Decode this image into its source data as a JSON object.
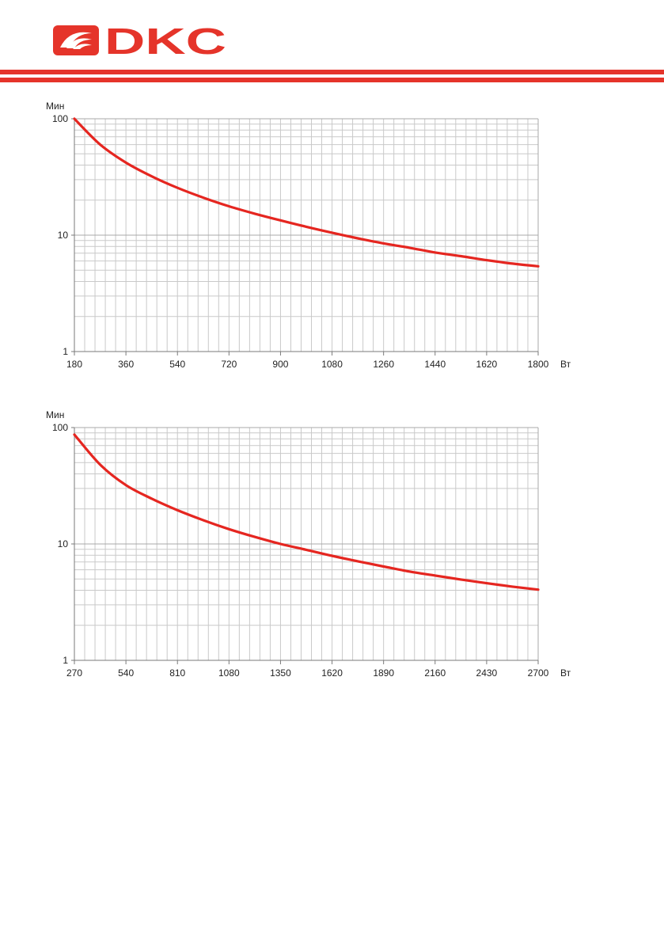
{
  "header": {
    "logo_text": "DKC",
    "brand_color": "#e5342a",
    "logo_icon": "dkc-swirl-logo-icon"
  },
  "chart_data": [
    {
      "type": "line",
      "x_unit": "Вт",
      "y_unit": "Мин",
      "x_ticks": [
        180,
        360,
        540,
        720,
        900,
        1080,
        1260,
        1440,
        1620,
        1800
      ],
      "y_ticks": [
        1,
        10,
        100
      ],
      "xlim": [
        180,
        1800
      ],
      "ylim": [
        1,
        100
      ],
      "y_scale": "log",
      "grid": true,
      "series": [
        {
          "color": "#e52620",
          "x": [
            180,
            270,
            360,
            450,
            540,
            630,
            720,
            810,
            900,
            990,
            1080,
            1170,
            1260,
            1350,
            1440,
            1530,
            1620,
            1710,
            1800
          ],
          "y": [
            100,
            60,
            42,
            32,
            25.5,
            21,
            17.7,
            15.3,
            13.4,
            11.8,
            10.5,
            9.4,
            8.5,
            7.8,
            7.1,
            6.6,
            6.1,
            5.7,
            5.4
          ]
        }
      ]
    },
    {
      "type": "line",
      "x_unit": "Вт",
      "y_unit": "Мин",
      "x_ticks": [
        270,
        540,
        810,
        1080,
        1350,
        1620,
        1890,
        2160,
        2430,
        2700
      ],
      "y_ticks": [
        1,
        10,
        100
      ],
      "xlim": [
        270,
        2700
      ],
      "ylim": [
        1,
        100
      ],
      "y_scale": "log",
      "grid": true,
      "series": [
        {
          "color": "#e52620",
          "x": [
            270,
            405,
            540,
            675,
            810,
            945,
            1080,
            1215,
            1350,
            1485,
            1620,
            1755,
            1890,
            2025,
            2160,
            2295,
            2430,
            2565,
            2700
          ],
          "y": [
            87,
            48,
            32,
            24.5,
            19.5,
            16,
            13.4,
            11.5,
            10,
            8.9,
            7.9,
            7.1,
            6.4,
            5.8,
            5.35,
            4.95,
            4.6,
            4.3,
            4.05
          ]
        }
      ]
    }
  ]
}
